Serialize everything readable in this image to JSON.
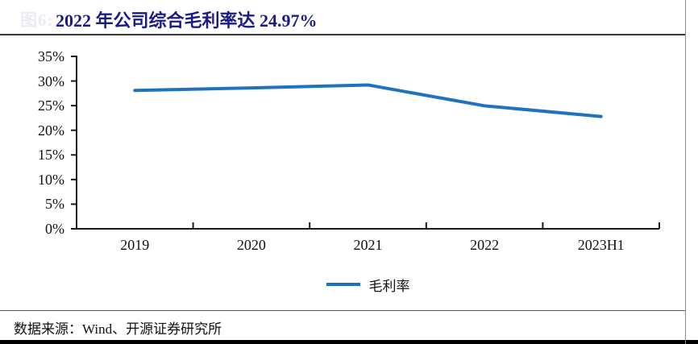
{
  "figure": {
    "figure_label": "图6:",
    "title": "2022 年公司综合毛利率达 24.97%",
    "source": "数据来源：Wind、开源证券研究所"
  },
  "colors": {
    "title": "#1b1b86",
    "series_line": "#1f72bf",
    "axis": "#1a1a1a"
  },
  "chart_data": {
    "type": "line",
    "title": "2022 年公司综合毛利率达 24.97%",
    "categories": [
      "2019",
      "2020",
      "2021",
      "2022",
      "2023H1"
    ],
    "series": [
      {
        "name": "毛利率",
        "values": [
          28.1,
          28.6,
          29.2,
          24.97,
          22.8
        ]
      }
    ],
    "xlabel": "",
    "ylabel": "",
    "ylim": [
      0,
      35
    ],
    "ytick_step": 5,
    "y_tick_labels": [
      "0%",
      "5%",
      "10%",
      "15%",
      "20%",
      "25%",
      "30%",
      "35%"
    ],
    "grid": false,
    "legend_position": "bottom",
    "line_color": "#1f72bf"
  }
}
